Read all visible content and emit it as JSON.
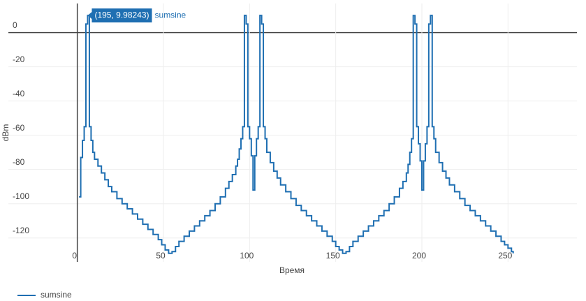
{
  "chart_data": {
    "type": "line",
    "line_shape": "step",
    "xlabel": "Время",
    "ylabel": "dBm",
    "xlim": [
      -40,
      290
    ],
    "ylim": [
      -134,
      17
    ],
    "xticks": [
      0,
      50,
      100,
      150,
      200,
      250
    ],
    "yticks": [
      0,
      -20,
      -40,
      -60,
      -80,
      -100,
      -120
    ],
    "grid": true,
    "legend": "bottom-left",
    "annotation": "(195, 9.98243)",
    "series": [
      {
        "name": "sumsine",
        "color": "#1f6fb2",
        "x": [
          1,
          2,
          3,
          4,
          5,
          6,
          7,
          8,
          9,
          10,
          12,
          14,
          16,
          18,
          20,
          23,
          26,
          29,
          32,
          35,
          38,
          41,
          44,
          47,
          49,
          51,
          53,
          55,
          57,
          59,
          62,
          65,
          68,
          71,
          74,
          77,
          80,
          83,
          86,
          88,
          90,
          92,
          93,
          94,
          95,
          96,
          97,
          98,
          99,
          100,
          101,
          102,
          103,
          104,
          105,
          106,
          107,
          108,
          109,
          110,
          112,
          114,
          116,
          118,
          121,
          124,
          127,
          130,
          133,
          136,
          139,
          142,
          145,
          148,
          150,
          152,
          154,
          156,
          158,
          160,
          163,
          166,
          169,
          172,
          175,
          178,
          181,
          184,
          187,
          189,
          191,
          192,
          193,
          194,
          195,
          196,
          197,
          198,
          199,
          200,
          201,
          202,
          203,
          204,
          205,
          206,
          207,
          208,
          210,
          212,
          214,
          216,
          219,
          222,
          225,
          228,
          231,
          234,
          237,
          240,
          243,
          246,
          248,
          250,
          252,
          253
        ],
        "values": [
          -96,
          -73,
          -63,
          -55,
          5,
          10,
          -55,
          -63,
          -70,
          -74,
          -78,
          -82,
          -86,
          -90,
          -93,
          -97,
          -100,
          -103,
          -106,
          -109,
          -112,
          -115,
          -118,
          -121,
          -124,
          -127,
          -129,
          -128,
          -125,
          -122,
          -119,
          -116,
          -113,
          -110,
          -107,
          -104,
          -100,
          -96,
          -91,
          -87,
          -83,
          -78,
          -74,
          -68,
          -62,
          -55,
          10,
          5,
          -55,
          -62,
          -72,
          -92,
          -72,
          -62,
          -55,
          10,
          5,
          -55,
          -62,
          -70,
          -76,
          -81,
          -85,
          -89,
          -93,
          -97,
          -101,
          -104,
          -107,
          -110,
          -113,
          -116,
          -119,
          -122,
          -125,
          -127,
          -129,
          -128,
          -125,
          -122,
          -119,
          -116,
          -113,
          -110,
          -107,
          -104,
          -100,
          -96,
          -91,
          -87,
          -82,
          -77,
          -70,
          -62,
          9.98243,
          5,
          -55,
          -65,
          -75,
          -92,
          -75,
          -65,
          -55,
          5,
          10,
          -55,
          -62,
          -70,
          -76,
          -81,
          -85,
          -89,
          -93,
          -97,
          -101,
          -104,
          -107,
          -110,
          -113,
          -116,
          -119,
          -122,
          -124,
          -126,
          -128,
          -129
        ]
      }
    ]
  }
}
